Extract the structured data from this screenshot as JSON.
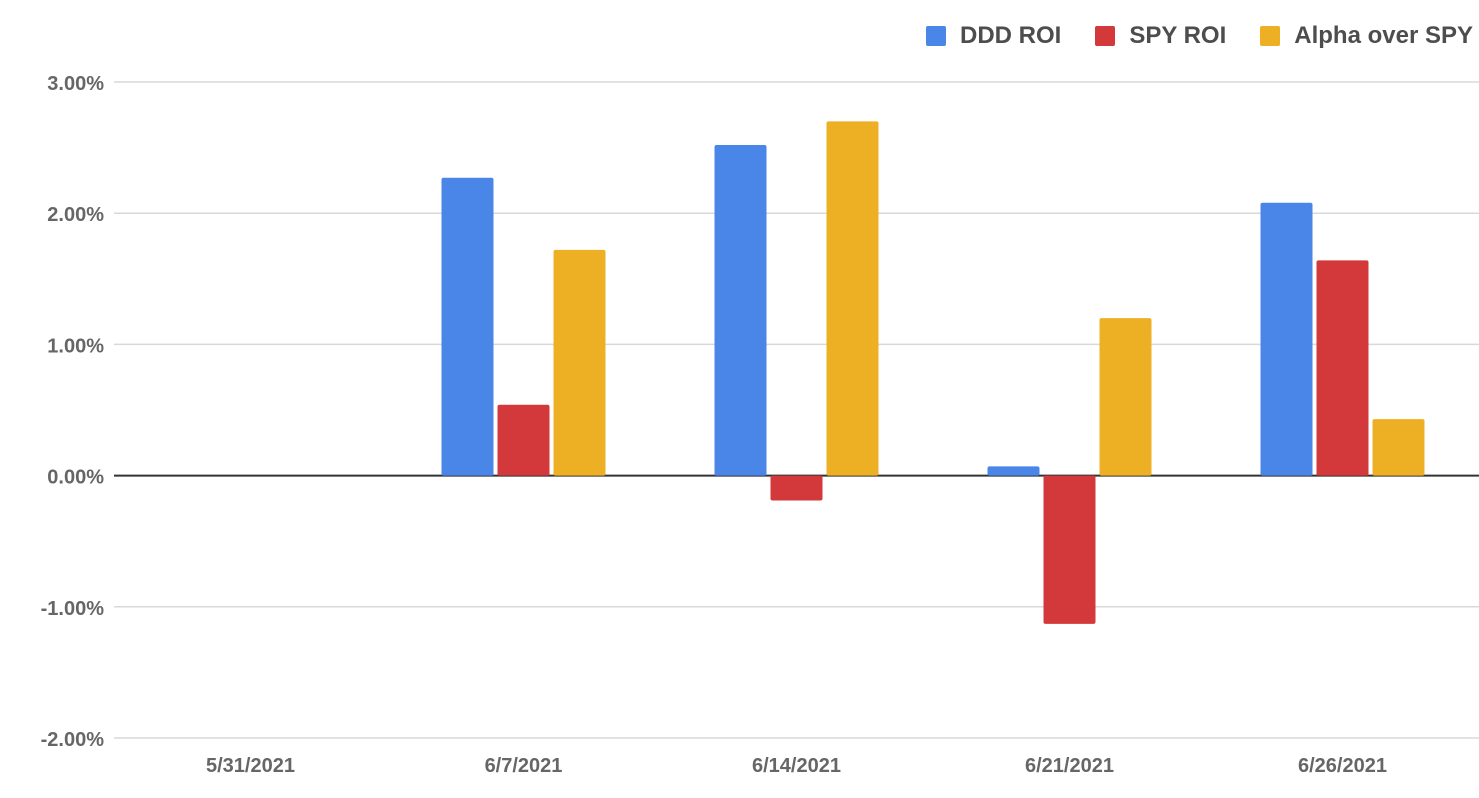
{
  "chart_data": {
    "type": "bar",
    "title": "",
    "xlabel": "",
    "ylabel": "",
    "categories": [
      "5/31/2021",
      "6/7/2021",
      "6/14/2021",
      "6/21/2021",
      "6/26/2021"
    ],
    "series": [
      {
        "name": "DDD ROI",
        "color": "#4a86e8",
        "values": [
          0,
          2.27,
          2.52,
          0.07,
          2.08
        ]
      },
      {
        "name": "SPY ROI",
        "color": "#d3393b",
        "values": [
          0,
          0.54,
          -0.19,
          -1.13,
          1.64
        ]
      },
      {
        "name": "Alpha over SPY",
        "color": "#edb024",
        "values": [
          0,
          1.72,
          2.7,
          1.2,
          0.43
        ]
      }
    ],
    "ylim": [
      -2,
      3
    ],
    "yticks": [
      3,
      2,
      1,
      0,
      -1,
      -2
    ],
    "ytick_labels": [
      "3.00%",
      "2.00%",
      "1.00%",
      "0.00%",
      "-1.00%",
      "-2.00%"
    ],
    "grid": true,
    "legend_position": "top-right"
  }
}
